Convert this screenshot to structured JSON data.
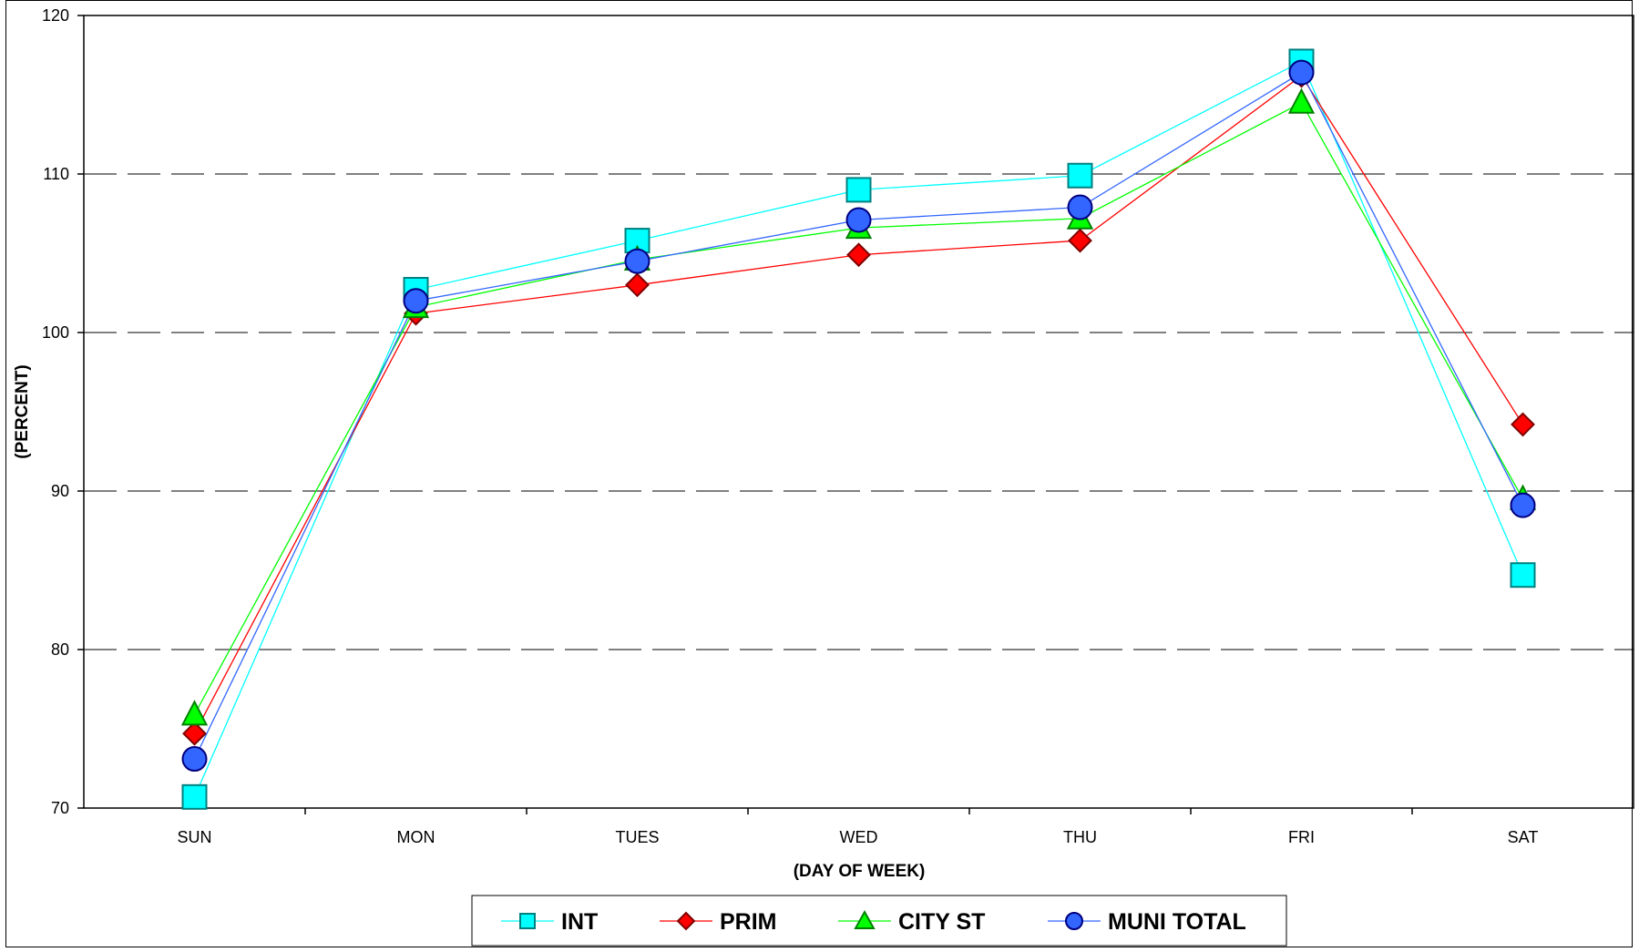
{
  "chart_data": {
    "type": "line",
    "title": "",
    "xlabel": "(DAY OF WEEK)",
    "ylabel": "(PERCENT)",
    "categories": [
      "SUN",
      "MON",
      "TUES",
      "WED",
      "THU",
      "FRI",
      "SAT"
    ],
    "ylim": [
      70,
      120
    ],
    "yticks": [
      70,
      80,
      90,
      100,
      110,
      120
    ],
    "grid": "horizontal-dashed",
    "legend_position": "bottom",
    "series": [
      {
        "name": "INT",
        "marker": "square",
        "line_color": "#00FFFF",
        "marker_fill": "#00FFFF",
        "marker_stroke": "#008080",
        "values": [
          70.7,
          102.7,
          105.8,
          109.0,
          109.9,
          117.1,
          84.7
        ]
      },
      {
        "name": "PRIM",
        "marker": "diamond",
        "line_color": "#FF0000",
        "marker_fill": "#FF0000",
        "marker_stroke": "#800000",
        "values": [
          74.7,
          101.2,
          103.0,
          104.9,
          105.8,
          116.2,
          94.2
        ]
      },
      {
        "name": "CITY ST",
        "marker": "triangle",
        "line_color": "#00FF00",
        "marker_fill": "#00FF00",
        "marker_stroke": "#008000",
        "values": [
          75.9,
          101.6,
          104.6,
          106.6,
          107.2,
          114.5,
          89.5
        ]
      },
      {
        "name": "MUNI TOTAL",
        "marker": "circle",
        "line_color": "#3366FF",
        "marker_fill": "#3366FF",
        "marker_stroke": "#000080",
        "values": [
          73.1,
          102.0,
          104.5,
          107.1,
          107.9,
          116.4,
          89.1
        ]
      }
    ]
  }
}
